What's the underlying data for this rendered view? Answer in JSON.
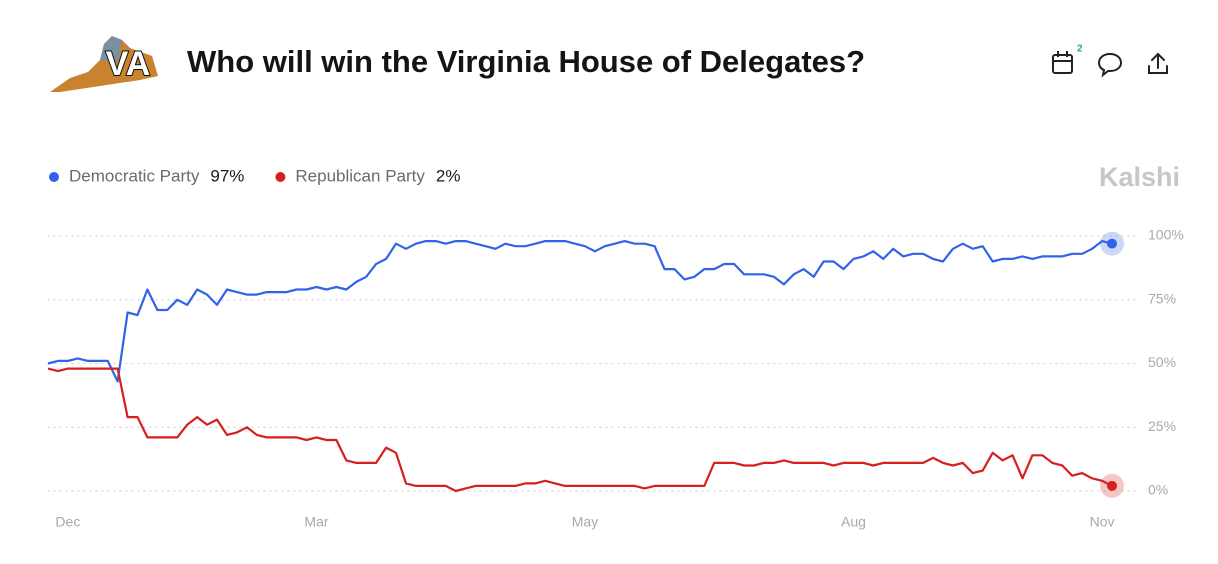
{
  "header": {
    "logo_text": "VA",
    "calendar_badge": "2"
  },
  "chart_data": {
    "type": "line",
    "title": "Who will win the Virginia House of Delegates?",
    "watermark": "Kalshi",
    "categories": [
      null,
      null,
      "Dec",
      null,
      null,
      null,
      null,
      null,
      null,
      null,
      null,
      null,
      null,
      null,
      null,
      null,
      null,
      null,
      null,
      null,
      null,
      null,
      null,
      null,
      null,
      null,
      null,
      "Mar",
      null,
      null,
      null,
      null,
      null,
      null,
      null,
      null,
      null,
      null,
      null,
      null,
      null,
      null,
      null,
      null,
      null,
      null,
      null,
      null,
      null,
      null,
      null,
      null,
      null,
      null,
      "May",
      null,
      null,
      null,
      null,
      null,
      null,
      null,
      null,
      null,
      null,
      null,
      null,
      null,
      null,
      null,
      null,
      null,
      null,
      null,
      null,
      null,
      null,
      null,
      null,
      null,
      null,
      "Aug",
      null,
      null,
      null,
      null,
      null,
      null,
      null,
      null,
      null,
      null,
      null,
      null,
      null,
      null,
      null,
      null,
      null,
      null,
      null,
      null,
      null,
      null,
      null,
      null,
      "Nov",
      null
    ],
    "series": [
      {
        "name": "Democratic Party",
        "color": "#3163e8",
        "current": {
          "value": 97,
          "label": "97%"
        },
        "values": [
          50,
          51,
          51,
          52,
          51,
          51,
          51,
          43,
          70,
          69,
          79,
          71,
          71,
          75,
          73,
          79,
          77,
          73,
          79,
          78,
          77,
          77,
          78,
          78,
          78,
          79,
          79,
          80,
          79,
          80,
          79,
          82,
          84,
          89,
          91,
          97,
          95,
          97,
          98,
          98,
          97,
          98,
          98,
          97,
          96,
          95,
          97,
          96,
          96,
          97,
          98,
          98,
          98,
          97,
          96,
          94,
          96,
          97,
          98,
          97,
          97,
          96,
          87,
          87,
          83,
          84,
          87,
          87,
          89,
          89,
          85,
          85,
          85,
          84,
          81,
          85,
          87,
          84,
          90,
          90,
          87,
          91,
          92,
          94,
          91,
          95,
          92,
          93,
          93,
          91,
          90,
          95,
          97,
          95,
          96,
          90,
          91,
          91,
          92,
          91,
          92,
          92,
          92,
          93,
          93,
          95,
          98,
          97
        ]
      },
      {
        "name": "Republican Party",
        "color": "#d61f1f",
        "current": {
          "value": 2,
          "label": "2%"
        },
        "values": [
          48,
          47,
          48,
          48,
          48,
          48,
          48,
          48,
          29,
          29,
          21,
          21,
          21,
          21,
          26,
          29,
          26,
          28,
          22,
          23,
          25,
          22,
          21,
          21,
          21,
          21,
          20,
          21,
          20,
          20,
          12,
          11,
          11,
          11,
          17,
          15,
          3,
          2,
          2,
          2,
          2,
          0,
          1,
          2,
          2,
          2,
          2,
          2,
          3,
          3,
          4,
          3,
          2,
          2,
          2,
          2,
          2,
          2,
          2,
          2,
          1,
          2,
          2,
          2,
          2,
          2,
          2,
          11,
          11,
          11,
          10,
          10,
          11,
          11,
          12,
          11,
          11,
          11,
          11,
          10,
          11,
          11,
          11,
          10,
          11,
          11,
          11,
          11,
          11,
          13,
          11,
          10,
          11,
          7,
          8,
          15,
          12,
          14,
          5,
          14,
          14,
          11,
          10,
          6,
          7,
          5,
          4,
          2
        ]
      }
    ],
    "ylim": [
      0,
      100
    ],
    "yticks": [
      {
        "value": 0,
        "label": "0%"
      },
      {
        "value": 25,
        "label": "25%"
      },
      {
        "value": 50,
        "label": "50%"
      },
      {
        "value": 75,
        "label": "75%"
      },
      {
        "value": 100,
        "label": "100%"
      }
    ],
    "grid": true
  }
}
